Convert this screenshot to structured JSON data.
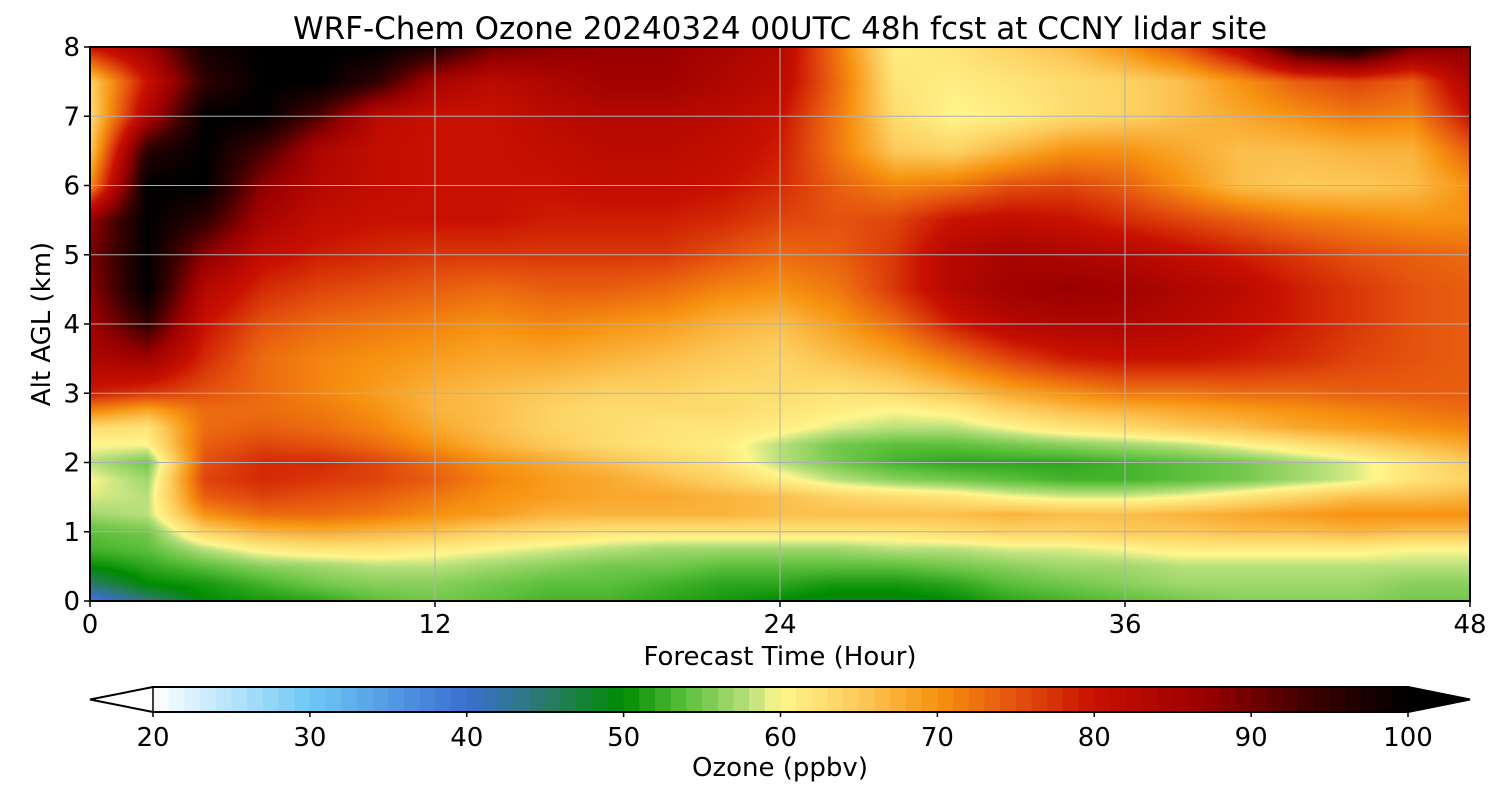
{
  "chart_data": {
    "type": "heatmap",
    "title": "WRF-Chem Ozone  20240324 00UTC 48h fcst at CCNY lidar site",
    "xlabel": "Forecast Time (Hour)",
    "ylabel": "Alt AGL (km)",
    "xlim": [
      0,
      48
    ],
    "ylim": [
      0,
      8
    ],
    "xticks": [
      0,
      12,
      24,
      36,
      48
    ],
    "yticks": [
      0,
      1,
      2,
      3,
      4,
      5,
      6,
      7,
      8
    ],
    "grid": true,
    "colorbar": {
      "label": "Ozone  (ppbv)",
      "orientation": "horizontal",
      "extend": "both",
      "range": [
        20,
        100
      ],
      "ticks": [
        20,
        30,
        40,
        50,
        60,
        70,
        80,
        90,
        100
      ],
      "under_color": "#ffffff",
      "over_color": "#000000",
      "stops": [
        {
          "value": 20,
          "color": "#ffffff"
        },
        {
          "value": 30,
          "color": "#6ec8f5"
        },
        {
          "value": 40,
          "color": "#3a6fd0"
        },
        {
          "value": 45,
          "color": "#2a7a6a"
        },
        {
          "value": 50,
          "color": "#008c00"
        },
        {
          "value": 54,
          "color": "#5cc03c"
        },
        {
          "value": 58,
          "color": "#b8e07c"
        },
        {
          "value": 60,
          "color": "#fff68c"
        },
        {
          "value": 65,
          "color": "#fcca5a"
        },
        {
          "value": 70,
          "color": "#f79210"
        },
        {
          "value": 75,
          "color": "#e4520e"
        },
        {
          "value": 80,
          "color": "#c81000"
        },
        {
          "value": 87,
          "color": "#9a0000"
        },
        {
          "value": 94,
          "color": "#3a0000"
        },
        {
          "value": 100,
          "color": "#000000"
        }
      ]
    },
    "x": [
      0,
      2,
      4,
      6,
      8,
      10,
      12,
      14,
      16,
      18,
      20,
      22,
      24,
      26,
      28,
      30,
      32,
      34,
      36,
      38,
      40,
      42,
      44,
      46,
      48
    ],
    "y": [
      0,
      0.25,
      0.5,
      0.75,
      1,
      1.25,
      1.5,
      1.75,
      2,
      2.25,
      2.5,
      2.75,
      3,
      3.5,
      4,
      4.5,
      5,
      5.5,
      6,
      6.5,
      7,
      7.5,
      8
    ],
    "values": [
      [
        38,
        44,
        50,
        51,
        52,
        54,
        55,
        54,
        53,
        53,
        52,
        51,
        50,
        49,
        49,
        50,
        52,
        53,
        54,
        55,
        56,
        56,
        56,
        55,
        55
      ],
      [
        45,
        50,
        51,
        53,
        55,
        56,
        56,
        55,
        54,
        54,
        53,
        52,
        52,
        51,
        51,
        52,
        54,
        55,
        56,
        57,
        57,
        57,
        57,
        56,
        56
      ],
      [
        50,
        52,
        54,
        56,
        57,
        58,
        58,
        57,
        56,
        55,
        55,
        54,
        54,
        54,
        54,
        55,
        56,
        57,
        57,
        58,
        58,
        58,
        58,
        58,
        58
      ],
      [
        53,
        54,
        58,
        61,
        62,
        62,
        61,
        60,
        59,
        58,
        57,
        57,
        57,
        57,
        58,
        58,
        59,
        59,
        60,
        61,
        61,
        61,
        61,
        60,
        60
      ],
      [
        54,
        55,
        64,
        67,
        68,
        67,
        66,
        64,
        63,
        62,
        62,
        62,
        62,
        62,
        62,
        63,
        64,
        64,
        65,
        65,
        66,
        66,
        67,
        66,
        66
      ],
      [
        57,
        58,
        70,
        73,
        73,
        72,
        70,
        69,
        67,
        67,
        67,
        67,
        66,
        66,
        66,
        66,
        67,
        66,
        66,
        67,
        68,
        69,
        70,
        70,
        70
      ],
      [
        59,
        58,
        74,
        76,
        75,
        74,
        72,
        70,
        69,
        68,
        68,
        67,
        66,
        64,
        63,
        62,
        60,
        59,
        59,
        60,
        62,
        64,
        66,
        66,
        67
      ],
      [
        60,
        57,
        76,
        78,
        77,
        76,
        74,
        71,
        69,
        68,
        66,
        64,
        61,
        58,
        56,
        55,
        54,
        53,
        53,
        54,
        55,
        57,
        59,
        62,
        64
      ],
      [
        58,
        55,
        75,
        78,
        78,
        76,
        73,
        70,
        68,
        66,
        64,
        62,
        58,
        55,
        53,
        52,
        52,
        52,
        53,
        54,
        55,
        57,
        59,
        62,
        65
      ],
      [
        60,
        60,
        74,
        76,
        75,
        73,
        70,
        67,
        65,
        63,
        62,
        61,
        58,
        55,
        54,
        54,
        55,
        56,
        57,
        58,
        60,
        62,
        64,
        66,
        68
      ],
      [
        63,
        62,
        73,
        74,
        73,
        71,
        68,
        66,
        64,
        63,
        62,
        62,
        61,
        59,
        58,
        58,
        60,
        62,
        63,
        65,
        66,
        68,
        69,
        70,
        71
      ],
      [
        71,
        68,
        73,
        73,
        72,
        70,
        67,
        66,
        64,
        63,
        63,
        63,
        62,
        61,
        60,
        61,
        64,
        66,
        67,
        68,
        69,
        70,
        71,
        72,
        73
      ],
      [
        79,
        77,
        75,
        73,
        71,
        69,
        67,
        66,
        65,
        64,
        64,
        63,
        63,
        62,
        63,
        65,
        68,
        70,
        72,
        72,
        73,
        73,
        74,
        74,
        74
      ],
      [
        84,
        86,
        78,
        73,
        71,
        70,
        69,
        68,
        68,
        67,
        66,
        65,
        64,
        66,
        68,
        72,
        76,
        79,
        80,
        80,
        79,
        78,
        76,
        75,
        74
      ],
      [
        86,
        95,
        80,
        75,
        73,
        72,
        71,
        70,
        71,
        70,
        69,
        67,
        66,
        69,
        73,
        79,
        83,
        84,
        84,
        83,
        81,
        79,
        77,
        75,
        74
      ],
      [
        88,
        100,
        83,
        78,
        76,
        75,
        74,
        73,
        74,
        74,
        73,
        71,
        70,
        72,
        77,
        83,
        86,
        87,
        86,
        84,
        82,
        79,
        77,
        75,
        74
      ],
      [
        89,
        100,
        88,
        81,
        79,
        78,
        77,
        77,
        77,
        77,
        77,
        75,
        73,
        74,
        77,
        83,
        85,
        84,
        83,
        81,
        79,
        77,
        75,
        74,
        73
      ],
      [
        87,
        100,
        95,
        85,
        81,
        80,
        80,
        80,
        79,
        79,
        79,
        78,
        76,
        75,
        76,
        80,
        81,
        80,
        78,
        76,
        74,
        72,
        71,
        70,
        70
      ],
      [
        70,
        100,
        100,
        88,
        83,
        81,
        80,
        80,
        80,
        81,
        81,
        80,
        78,
        74,
        71,
        72,
        75,
        76,
        74,
        70,
        66,
        65,
        65,
        66,
        70
      ],
      [
        65,
        96,
        100,
        93,
        84,
        81,
        80,
        80,
        81,
        82,
        82,
        81,
        79,
        72,
        65,
        64,
        67,
        70,
        70,
        68,
        66,
        66,
        67,
        67,
        74
      ],
      [
        63,
        84,
        100,
        100,
        92,
        82,
        80,
        80,
        82,
        83,
        83,
        82,
        80,
        72,
        63,
        60,
        61,
        63,
        64,
        66,
        68,
        70,
        72,
        71,
        80
      ],
      [
        64,
        80,
        95,
        100,
        100,
        95,
        85,
        82,
        84,
        86,
        86,
        84,
        82,
        73,
        62,
        61,
        62,
        63,
        64,
        66,
        70,
        74,
        76,
        74,
        84
      ],
      [
        80,
        86,
        98,
        100,
        100,
        100,
        97,
        90,
        88,
        87,
        87,
        85,
        83,
        72,
        61,
        62,
        64,
        66,
        70,
        75,
        83,
        97,
        100,
        90,
        88
      ]
    ]
  }
}
